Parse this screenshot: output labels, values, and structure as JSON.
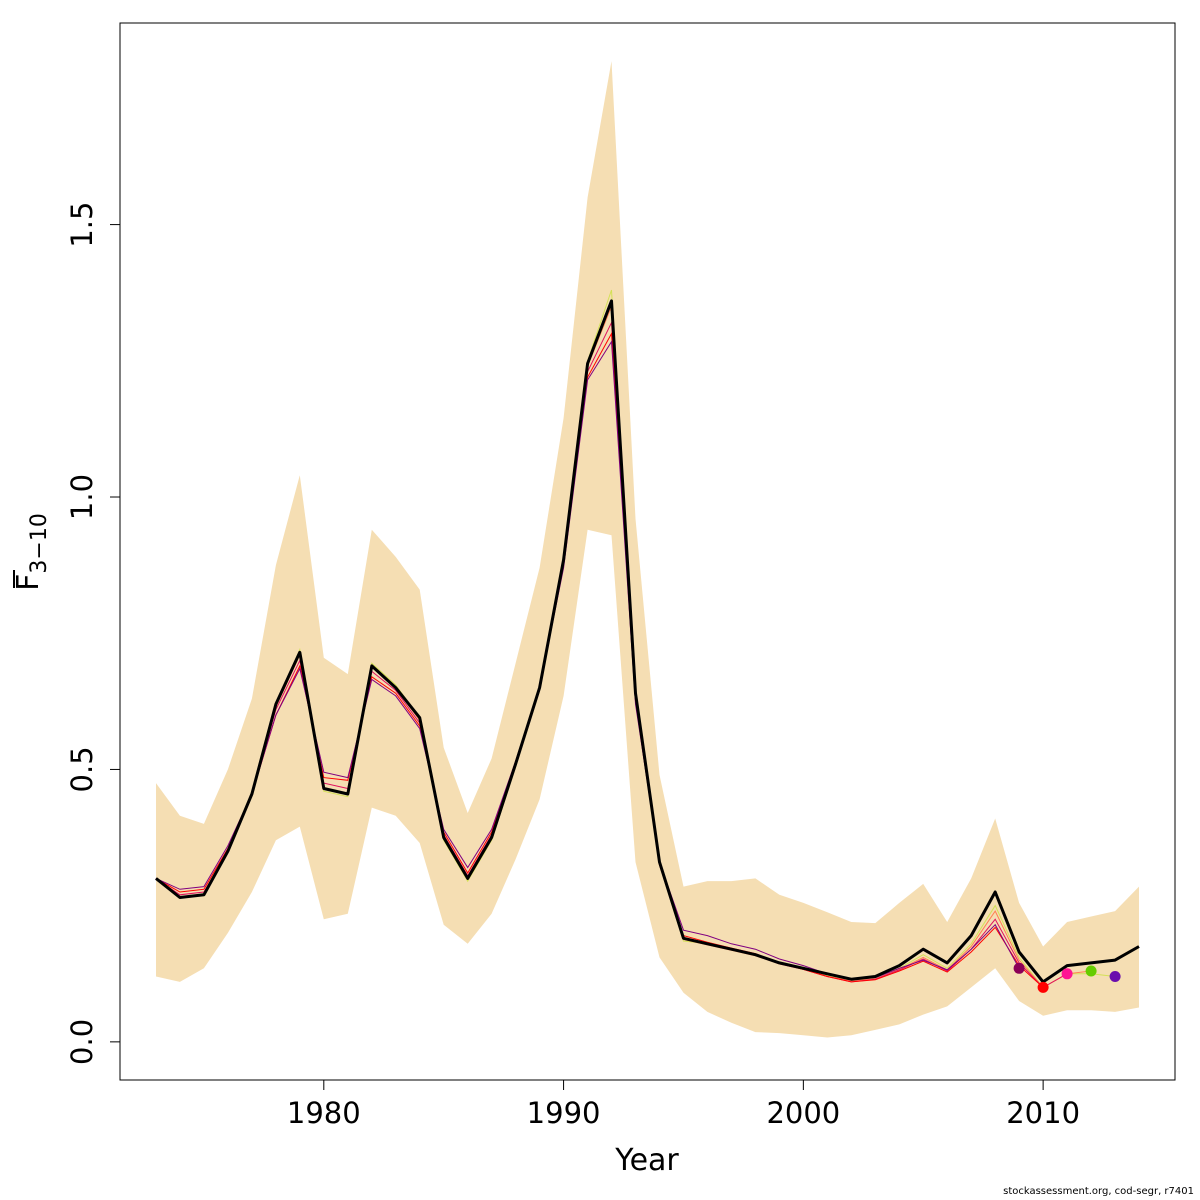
{
  "chart_data": {
    "type": "line",
    "xlabel": "Year",
    "ylabel_main": "F",
    "ylabel_sub": "3−10",
    "xlim": [
      1971.5,
      2015.5
    ],
    "ylim": [
      -0.07,
      1.87
    ],
    "x_ticks": [
      1980,
      1990,
      2000,
      2010
    ],
    "y_ticks": [
      0.0,
      0.5,
      1.0,
      1.5
    ],
    "y_tick_labels": [
      "0.0",
      "0.5",
      "1.0",
      "1.5"
    ],
    "grid": false,
    "legend": "none",
    "colors": {
      "band": "#f5deb3",
      "main": "#000000",
      "peels": [
        "#000000",
        "#d4e157",
        "#ff7f50",
        "#e0115f",
        "#ff0000",
        "#800080"
      ]
    },
    "band": {
      "x": [
        1973,
        1974,
        1975,
        1976,
        1977,
        1978,
        1979,
        1980,
        1981,
        1982,
        1983,
        1984,
        1985,
        1986,
        1987,
        1988,
        1989,
        1990,
        1991,
        1992,
        1993,
        1994,
        1995,
        1996,
        1997,
        1998,
        1999,
        2000,
        2001,
        2002,
        2003,
        2004,
        2005,
        2006,
        2007,
        2008,
        2009,
        2010,
        2011,
        2012,
        2013,
        2014
      ],
      "lower": [
        0.12,
        0.11,
        0.135,
        0.2,
        0.275,
        0.37,
        0.395,
        0.225,
        0.235,
        0.43,
        0.415,
        0.365,
        0.215,
        0.18,
        0.235,
        0.335,
        0.445,
        0.635,
        0.94,
        0.93,
        0.33,
        0.155,
        0.09,
        0.055,
        0.035,
        0.018,
        0.016,
        0.012,
        0.008,
        0.012,
        0.022,
        0.032,
        0.05,
        0.065,
        0.1,
        0.135,
        0.075,
        0.048,
        0.058,
        0.058,
        0.055,
        0.063
      ],
      "upper": [
        0.475,
        0.415,
        0.4,
        0.5,
        0.63,
        0.875,
        1.04,
        0.705,
        0.675,
        0.94,
        0.89,
        0.83,
        0.54,
        0.42,
        0.52,
        0.695,
        0.87,
        1.145,
        1.55,
        1.8,
        0.96,
        0.49,
        0.285,
        0.295,
        0.295,
        0.3,
        0.27,
        0.255,
        0.238,
        0.22,
        0.218,
        0.255,
        0.29,
        0.22,
        0.3,
        0.41,
        0.255,
        0.175,
        0.22,
        0.23,
        0.24,
        0.285
      ]
    },
    "main_series": {
      "x": [
        1973,
        1974,
        1975,
        1976,
        1977,
        1978,
        1979,
        1980,
        1981,
        1982,
        1983,
        1984,
        1985,
        1986,
        1987,
        1988,
        1989,
        1990,
        1991,
        1992,
        1993,
        1994,
        1995,
        1996,
        1997,
        1998,
        1999,
        2000,
        2001,
        2002,
        2003,
        2004,
        2005,
        2006,
        2007,
        2008,
        2009,
        2010,
        2011,
        2012,
        2013,
        2014
      ],
      "values": [
        0.3,
        0.265,
        0.27,
        0.35,
        0.455,
        0.62,
        0.715,
        0.465,
        0.455,
        0.69,
        0.65,
        0.595,
        0.375,
        0.3,
        0.375,
        0.51,
        0.65,
        0.885,
        1.245,
        1.36,
        0.64,
        0.33,
        0.19,
        0.18,
        0.17,
        0.16,
        0.145,
        0.135,
        0.125,
        0.115,
        0.12,
        0.14,
        0.17,
        0.145,
        0.195,
        0.275,
        0.165,
        0.11,
        0.14,
        0.145,
        0.15,
        0.175
      ]
    },
    "peels": [
      {
        "end_year": 2013,
        "values": [
          0.3,
          0.265,
          0.268,
          0.35,
          0.455,
          0.62,
          0.72,
          0.46,
          0.45,
          0.695,
          0.655,
          0.595,
          0.37,
          0.295,
          0.37,
          0.505,
          0.65,
          0.885,
          1.25,
          1.38,
          0.64,
          0.325,
          0.185,
          0.18,
          0.17,
          0.16,
          0.145,
          0.135,
          0.122,
          0.113,
          0.118,
          0.135,
          0.16,
          0.135,
          0.18,
          0.25,
          0.155,
          0.1,
          0.125,
          0.125,
          0.12
        ]
      },
      {
        "end_year": 2012,
        "values": [
          0.3,
          0.265,
          0.27,
          0.35,
          0.455,
          0.615,
          0.71,
          0.465,
          0.455,
          0.69,
          0.65,
          0.59,
          0.375,
          0.3,
          0.375,
          0.51,
          0.65,
          0.885,
          1.24,
          1.35,
          0.635,
          0.325,
          0.188,
          0.178,
          0.168,
          0.158,
          0.143,
          0.133,
          0.12,
          0.112,
          0.116,
          0.133,
          0.155,
          0.132,
          0.175,
          0.24,
          0.15,
          0.1,
          0.125,
          0.13
        ]
      },
      {
        "end_year": 2011,
        "values": [
          0.3,
          0.27,
          0.275,
          0.35,
          0.455,
          0.61,
          0.7,
          0.475,
          0.465,
          0.68,
          0.645,
          0.585,
          0.38,
          0.305,
          0.38,
          0.51,
          0.65,
          0.88,
          1.23,
          1.32,
          0.63,
          0.325,
          0.19,
          0.18,
          0.17,
          0.16,
          0.143,
          0.133,
          0.12,
          0.11,
          0.115,
          0.132,
          0.152,
          0.13,
          0.17,
          0.225,
          0.145,
          0.1,
          0.125
        ]
      },
      {
        "end_year": 2010,
        "values": [
          0.3,
          0.275,
          0.28,
          0.355,
          0.455,
          0.6,
          0.69,
          0.485,
          0.48,
          0.67,
          0.64,
          0.58,
          0.385,
          0.31,
          0.385,
          0.515,
          0.65,
          0.875,
          1.22,
          1.3,
          0.625,
          0.325,
          0.195,
          0.183,
          0.172,
          0.162,
          0.145,
          0.133,
          0.12,
          0.11,
          0.114,
          0.13,
          0.148,
          0.128,
          0.165,
          0.21,
          0.14,
          0.1
        ]
      },
      {
        "end_year": 2009,
        "values": [
          0.3,
          0.28,
          0.285,
          0.36,
          0.455,
          0.6,
          0.685,
          0.495,
          0.485,
          0.665,
          0.635,
          0.575,
          0.39,
          0.32,
          0.39,
          0.515,
          0.65,
          0.87,
          1.215,
          1.285,
          0.62,
          0.33,
          0.205,
          0.195,
          0.18,
          0.17,
          0.152,
          0.14,
          0.125,
          0.115,
          0.118,
          0.135,
          0.15,
          0.132,
          0.17,
          0.215,
          0.135
        ]
      }
    ],
    "peel_end_points": [
      {
        "x": 2009,
        "y": 0.135,
        "color": "#8b0057"
      },
      {
        "x": 2010,
        "y": 0.1,
        "color": "#ff0000"
      },
      {
        "x": 2011,
        "y": 0.125,
        "color": "#ff1493"
      },
      {
        "x": 2012,
        "y": 0.13,
        "color": "#66cc00"
      },
      {
        "x": 2013,
        "y": 0.12,
        "color": "#6a0dad"
      }
    ]
  },
  "footnote": "stockassessment.org, cod-segr, r7401"
}
